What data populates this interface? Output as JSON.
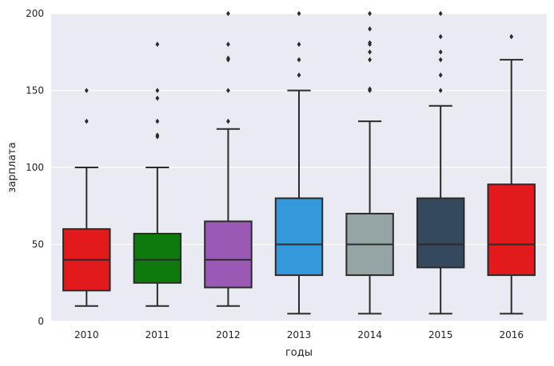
{
  "chart_data": {
    "type": "boxplot",
    "title": "",
    "xlabel": "годы",
    "ylabel": "зарплата",
    "ylim": [
      0,
      200
    ],
    "yticks": [
      0,
      50,
      100,
      150,
      200
    ],
    "grid": true,
    "categories": [
      "2010",
      "2011",
      "2012",
      "2013",
      "2014",
      "2015",
      "2016"
    ],
    "boxes": [
      {
        "category": "2010",
        "whisker_low": 10,
        "q1": 20,
        "median": 40,
        "q3": 60,
        "whisker_high": 100,
        "outliers": [
          130,
          150
        ],
        "color": "#e31a1c"
      },
      {
        "category": "2011",
        "whisker_low": 10,
        "q1": 25,
        "median": 40,
        "q3": 57,
        "whisker_high": 100,
        "outliers": [
          120,
          121,
          130,
          145,
          150,
          180
        ],
        "color": "#0e7a0e"
      },
      {
        "category": "2012",
        "whisker_low": 10,
        "q1": 22,
        "median": 40,
        "q3": 65,
        "whisker_high": 125,
        "outliers": [
          130,
          150,
          170,
          171,
          180,
          200
        ],
        "color": "#9b59b6"
      },
      {
        "category": "2013",
        "whisker_low": 5,
        "q1": 30,
        "median": 50,
        "q3": 80,
        "whisker_high": 150,
        "outliers": [
          160,
          170,
          180,
          200
        ],
        "color": "#3498db"
      },
      {
        "category": "2014",
        "whisker_low": 5,
        "q1": 30,
        "median": 50,
        "q3": 70,
        "whisker_high": 130,
        "outliers": [
          150,
          151,
          170,
          175,
          180,
          181,
          190,
          200
        ],
        "color": "#95a5a6"
      },
      {
        "category": "2015",
        "whisker_low": 5,
        "q1": 35,
        "median": 50,
        "q3": 80,
        "whisker_high": 140,
        "outliers": [
          150,
          160,
          170,
          175,
          185,
          200
        ],
        "color": "#34495e"
      },
      {
        "category": "2016",
        "whisker_low": 5,
        "q1": 30,
        "median": 50,
        "q3": 89,
        "whisker_high": 170,
        "outliers": [
          185
        ],
        "color": "#e31a1c"
      }
    ],
    "colors": {
      "plot_background": "#eaeaf2",
      "grid": "#ffffff",
      "line": "#2b2b2b"
    }
  }
}
